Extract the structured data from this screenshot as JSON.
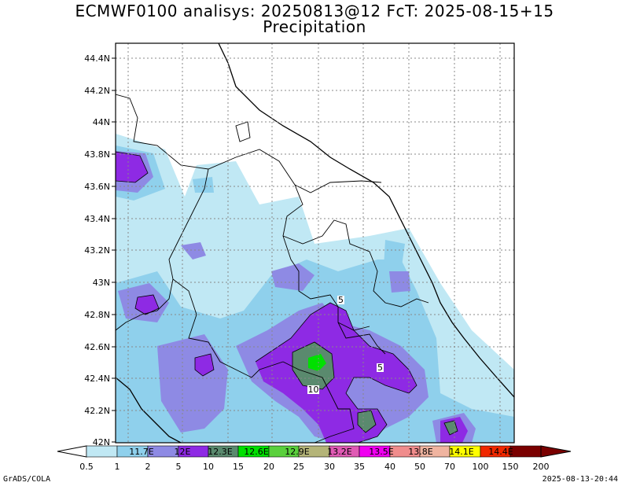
{
  "title_line1": "ECMWF0100 analisys: 20250813@12 FcT: 2025-08-15+15",
  "title_line2": "Precipitation",
  "lat_labels": [
    "44.4N",
    "44.2N",
    "44N",
    "43.8N",
    "43.6N",
    "43.4N",
    "43.2N",
    "43N",
    "42.8N",
    "42.6N",
    "42.4N",
    "42.2N",
    "42N"
  ],
  "lon_labels": [
    "11.7E",
    "12E",
    "12.3E",
    "12.6E",
    "12.9E",
    "13.2E",
    "13.5E",
    "13.8E",
    "14.1E",
    "14.4E"
  ],
  "contour_labels": [
    "5",
    "5",
    "10"
  ],
  "colorbar": {
    "values": [
      "0.5",
      "1",
      "2",
      "5",
      "10",
      "15",
      "20",
      "25",
      "30",
      "35",
      "40",
      "50",
      "70",
      "100",
      "150",
      "200"
    ],
    "colors": [
      "#ffffff",
      "#c0e8f4",
      "#8fd0ec",
      "#8e8ae4",
      "#8e2ae4",
      "#5a8a6e",
      "#00e000",
      "#5ad03c",
      "#b4b478",
      "#e05ab4",
      "#f000f0",
      "#f08c8c",
      "#f0b4a0",
      "#ffff00",
      "#f02800",
      "#7a0000"
    ]
  },
  "map_colors": {
    "very_light": "#c0e8f4",
    "light": "#8fd0ec",
    "mid": "#8e8ae4",
    "violet": "#8e2ae4",
    "dark_green": "#5a8a6e",
    "green": "#00e000"
  },
  "footer_left": "GrADS/COLA",
  "footer_right": "2025-08-13-20:44"
}
